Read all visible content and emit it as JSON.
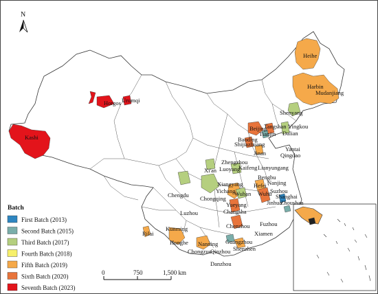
{
  "north_label": "N",
  "legend": {
    "title": "Batch",
    "items": [
      {
        "label": "First Batch (2013)",
        "color": "#2e86c1"
      },
      {
        "label": "Second Batch (2015)",
        "color": "#7aaeaa"
      },
      {
        "label": "Third Batch (2017)",
        "color": "#b5cf7f"
      },
      {
        "label": "Fourth Batch (2018)",
        "color": "#f7f06a"
      },
      {
        "label": "Fifth Batch (2019)",
        "color": "#f5a94a"
      },
      {
        "label": "Sixth Batch (2020)",
        "color": "#e8743b"
      },
      {
        "label": "Seventh Batch (2023)",
        "color": "#e3141b"
      }
    ]
  },
  "scale": {
    "labels": [
      "0",
      "750",
      "1,500 km"
    ]
  },
  "cities": [
    "Horgos",
    "Urumqi",
    "Kashi",
    "Heihe",
    "Harbin",
    "Mudanjiang",
    "Shenyang",
    "Yingkou",
    "Tangshan",
    "Dalian",
    "Beijing",
    "Tianjin",
    "Baoding",
    "Shijiazhuang",
    "Yantai",
    "Qingdao",
    "Jinan",
    "Zhengzhou",
    "Kaifeng",
    "Lianyungang",
    "Luoyang",
    "Xi'an",
    "Bengbu",
    "Nanjing",
    "Hefei",
    "Suzhou",
    "Shanghai",
    "Wuhu",
    "Xiangyang",
    "Yichang",
    "Wuhan",
    "Jinhua",
    "Zhoushan",
    "Chengdu",
    "Chongqing",
    "Luzhou",
    "Yueyang",
    "Changsha",
    "Chenzhou",
    "Fuzhou",
    "Xiamen",
    "Kunming",
    "Honghe",
    "Rilai",
    "Nanning",
    "Chongzuo",
    "Qinzhou",
    "Guangzhou",
    "Shenzhen",
    "Danzhou"
  ]
}
